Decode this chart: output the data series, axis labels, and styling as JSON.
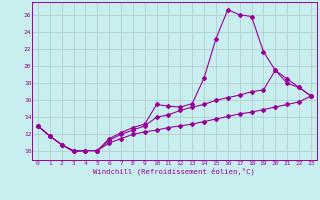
{
  "xlabel": "Windchill (Refroidissement éolien,°C)",
  "bg_color": "#c8eef0",
  "grid_color": "#b0c8c8",
  "line_color": "#990099",
  "x_ticks": [
    0,
    1,
    2,
    3,
    4,
    5,
    6,
    7,
    8,
    9,
    10,
    11,
    12,
    13,
    14,
    15,
    16,
    17,
    18,
    19,
    20,
    21,
    22,
    23
  ],
  "y_ticks": [
    10,
    12,
    14,
    16,
    18,
    20,
    22,
    24,
    26
  ],
  "xlim": [
    -0.5,
    23.5
  ],
  "ylim": [
    9.0,
    27.5
  ],
  "series1_y": [
    13.0,
    11.8,
    10.8,
    10.0,
    10.1,
    10.1,
    11.5,
    12.2,
    12.8,
    13.2,
    15.5,
    15.3,
    15.2,
    15.6,
    18.6,
    23.2,
    26.6,
    26.0,
    25.8,
    21.7,
    19.5,
    18.5,
    17.5,
    16.5
  ],
  "series2_y": [
    13.0,
    11.8,
    10.8,
    10.1,
    10.1,
    10.1,
    11.3,
    12.0,
    12.5,
    13.0,
    14.0,
    14.3,
    14.8,
    15.2,
    15.5,
    16.0,
    16.3,
    16.6,
    17.0,
    17.2,
    19.5,
    18.0,
    17.5,
    16.5
  ],
  "series3_y": [
    13.0,
    11.8,
    10.8,
    10.0,
    10.1,
    10.1,
    11.0,
    11.5,
    12.0,
    12.3,
    12.5,
    12.8,
    13.0,
    13.2,
    13.5,
    13.8,
    14.1,
    14.4,
    14.6,
    14.9,
    15.2,
    15.5,
    15.8,
    16.5
  ]
}
